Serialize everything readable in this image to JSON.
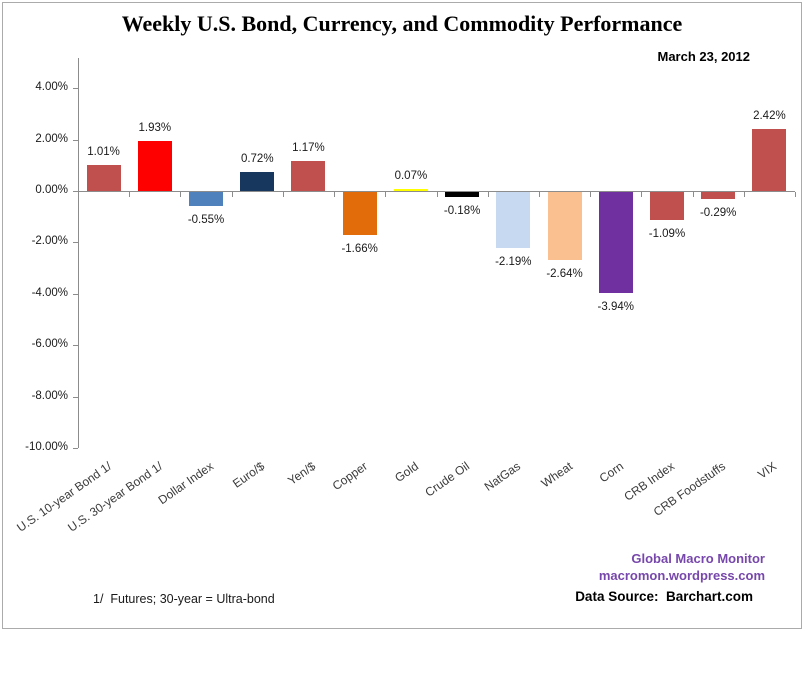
{
  "header": {
    "title": "Weekly U.S. Bond, Currency, and Commodity Performance",
    "date": "March 23, 2012"
  },
  "chart_data": {
    "type": "bar",
    "title": "Weekly U.S. Bond, Currency, and Commodity Performance",
    "subtitle": "March 23, 2012",
    "categories": [
      "U.S. 10-year Bond 1/",
      "U.S. 30-year Bond 1/",
      "Dollar Index",
      "Euro/$",
      "Yen/$",
      "Copper",
      "Gold",
      "Crude Oil",
      "NatGas",
      "Wheat",
      "Corn",
      "CRB Index",
      "CRB Foodstuffs",
      "VIX"
    ],
    "values": [
      1.01,
      1.93,
      -0.55,
      0.72,
      1.17,
      -1.66,
      0.07,
      -0.18,
      -2.19,
      -2.64,
      -3.94,
      -1.09,
      -0.29,
      2.42
    ],
    "value_labels": [
      "1.01%",
      "1.93%",
      "-0.55%",
      "0.72%",
      "1.17%",
      "-1.66%",
      "0.07%",
      "-0.18%",
      "-2.19%",
      "-2.64%",
      "-3.94%",
      "-1.09%",
      "-0.29%",
      "2.42%"
    ],
    "bar_colors": [
      "#C0504D",
      "#FF0000",
      "#4F81BD",
      "#17375E",
      "#C0504D",
      "#E36C0A",
      "#FFFF00",
      "#000000",
      "#C6D9F1",
      "#FAC090",
      "#7030A0",
      "#C0504D",
      "#C0504D",
      "#C0504D"
    ],
    "y_axis": {
      "tick_labels": [
        "4.00%",
        "2.00%",
        "0.00%",
        "-2.00%",
        "-4.00%",
        "-6.00%",
        "-8.00%",
        "-10.00%"
      ],
      "tick_values": [
        4,
        2,
        0,
        -2,
        -4,
        -6,
        -8,
        -10
      ],
      "range": [
        -10,
        5.2
      ]
    },
    "grid": false,
    "legend": "none",
    "axis_color": "#8C8C8C"
  },
  "footer": {
    "footnote": "1/  Futures; 30-year = Ultra-bond",
    "brand_line1": "Global Macro Monitor",
    "brand_line2": "macromon.wordpress.com",
    "brand_color": "#7747AB",
    "data_source": "Data Source:  Barchart.com"
  }
}
